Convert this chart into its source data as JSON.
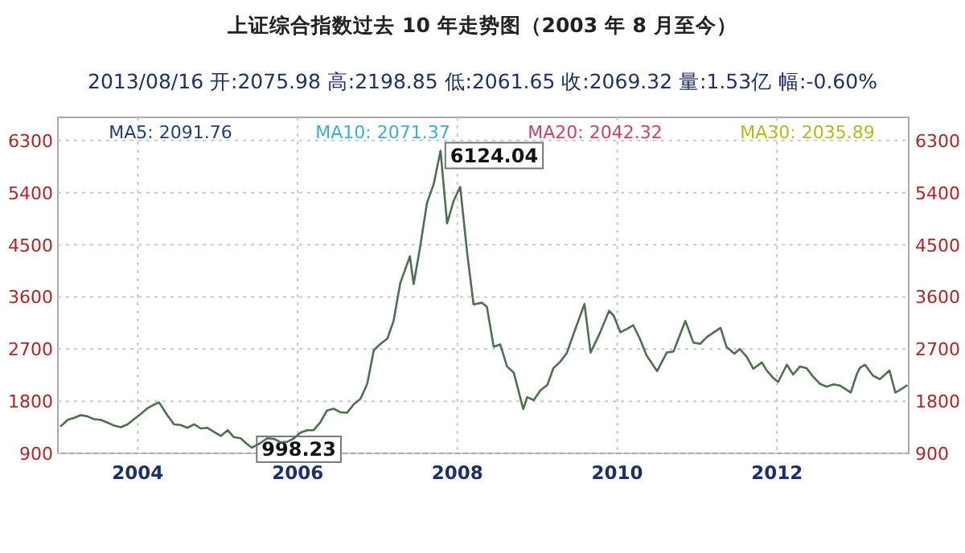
{
  "chart_data": {
    "type": "line",
    "title": "上证综合指数过去 10 年走势图（2003 年 8 月至今）",
    "subtitle": "2013/08/16 开:2075.98  高:2198.85  低:2061.65  收:2069.32  量:1.53亿  幅:-0.60%",
    "annotations": [
      "MA5: 2091.76",
      "MA10: 2071.37",
      "MA20: 2042.32",
      "MA30: 2035.89",
      {
        "text": "6124.04",
        "x": "2007-10-16",
        "y": 6124.04
      },
      {
        "text": "998.23",
        "x": "2005-06-06",
        "y": 998.23
      }
    ],
    "x": [
      "2003-01-15",
      "2003-02-15",
      "2003-03-15",
      "2003-04-15",
      "2003-05-15",
      "2003-06-15",
      "2003-07-15",
      "2003-08-15",
      "2003-09-15",
      "2003-10-15",
      "2003-11-15",
      "2003-12-15",
      "2004-01-15",
      "2004-02-15",
      "2004-03-15",
      "2004-04-07",
      "2004-05-15",
      "2004-06-15",
      "2004-07-15",
      "2004-08-15",
      "2004-09-15",
      "2004-10-15",
      "2004-11-15",
      "2004-12-15",
      "2005-01-15",
      "2005-02-15",
      "2005-03-15",
      "2005-04-15",
      "2005-05-15",
      "2005-06-06",
      "2005-07-15",
      "2005-08-15",
      "2005-09-15",
      "2005-10-15",
      "2005-11-15",
      "2005-12-15",
      "2006-01-15",
      "2006-02-15",
      "2006-03-15",
      "2006-04-15",
      "2006-05-15",
      "2006-06-15",
      "2006-07-15",
      "2006-08-15",
      "2006-09-15",
      "2006-10-15",
      "2006-11-15",
      "2006-12-15",
      "2007-01-15",
      "2007-02-15",
      "2007-03-15",
      "2007-04-15",
      "2007-05-29",
      "2007-06-15",
      "2007-07-15",
      "2007-08-15",
      "2007-09-15",
      "2007-10-16",
      "2007-11-15",
      "2007-12-15",
      "2008-01-14",
      "2008-02-15",
      "2008-03-15",
      "2008-04-22",
      "2008-05-15",
      "2008-06-15",
      "2008-07-15",
      "2008-08-15",
      "2008-09-15",
      "2008-10-28",
      "2008-11-15",
      "2008-12-15",
      "2009-01-15",
      "2009-02-15",
      "2009-03-15",
      "2009-04-15",
      "2009-05-15",
      "2009-06-15",
      "2009-08-04",
      "2009-09-01",
      "2009-10-15",
      "2009-11-24",
      "2009-12-15",
      "2010-01-15",
      "2010-02-15",
      "2010-03-15",
      "2010-04-15",
      "2010-05-15",
      "2010-07-02",
      "2010-08-15",
      "2010-09-15",
      "2010-11-08",
      "2010-12-15",
      "2011-01-15",
      "2011-02-15",
      "2011-04-18",
      "2011-05-15",
      "2011-06-20",
      "2011-07-15",
      "2011-08-15",
      "2011-09-15",
      "2011-10-24",
      "2011-11-15",
      "2011-12-15",
      "2012-01-06",
      "2012-02-15",
      "2012-03-15",
      "2012-04-15",
      "2012-05-15",
      "2012-06-15",
      "2012-07-15",
      "2012-08-15",
      "2012-09-15",
      "2012-10-15",
      "2012-12-03",
      "2012-12-31",
      "2013-01-15",
      "2013-02-06",
      "2013-03-15",
      "2013-04-15",
      "2013-05-29",
      "2013-06-25",
      "2013-07-15",
      "2013-08-16"
    ],
    "series": [
      {
        "color": "#4f6f4f",
        "values": [
          1370,
          1480,
          1510,
          1560,
          1540,
          1490,
          1480,
          1430,
          1380,
          1350,
          1400,
          1490,
          1580,
          1680,
          1740,
          1780,
          1560,
          1400,
          1390,
          1340,
          1400,
          1330,
          1340,
          1270,
          1200,
          1300,
          1180,
          1160,
          1060,
          998.23,
          1080,
          1160,
          1150,
          1090,
          1100,
          1160,
          1260,
          1300,
          1300,
          1440,
          1640,
          1670,
          1610,
          1600,
          1750,
          1840,
          2100,
          2680,
          2790,
          2880,
          3180,
          3840,
          4300,
          3820,
          4470,
          5220,
          5550,
          6124.04,
          4870,
          5260,
          5500,
          4350,
          3470,
          3500,
          3430,
          2740,
          2780,
          2400,
          2290,
          1664,
          1870,
          1820,
          1990,
          2080,
          2370,
          2480,
          2630,
          2960,
          3478,
          2640,
          2990,
          3360,
          3280,
          2990,
          3050,
          3110,
          2870,
          2590,
          2320,
          2640,
          2660,
          3186,
          2810,
          2790,
          2910,
          3067,
          2740,
          2620,
          2700,
          2570,
          2360,
          2470,
          2330,
          2200,
          2132,
          2430,
          2260,
          2400,
          2370,
          2220,
          2100,
          2050,
          2090,
          2070,
          1950,
          2270,
          2380,
          2430,
          2240,
          2180,
          2330,
          1950,
          1990,
          2069.32
        ]
      }
    ],
    "xlim": [
      "2003-01-01",
      "2013-08-25"
    ],
    "xticks": [
      {
        "value": "2004-01-01",
        "label": "2004"
      },
      {
        "value": "2006-01-01",
        "label": "2006"
      },
      {
        "value": "2008-01-01",
        "label": "2008"
      },
      {
        "value": "2010-01-01",
        "label": "2010"
      },
      {
        "value": "2012-01-01",
        "label": "2012"
      }
    ],
    "ylim": [
      900,
      6700
    ],
    "yticks": [
      900,
      1800,
      2700,
      3600,
      4500,
      5400,
      6300
    ],
    "y2lim": [
      900,
      6700
    ],
    "y2ticks": [
      900,
      1800,
      2700,
      3600,
      4500,
      5400,
      6300
    ],
    "grid": true
  }
}
